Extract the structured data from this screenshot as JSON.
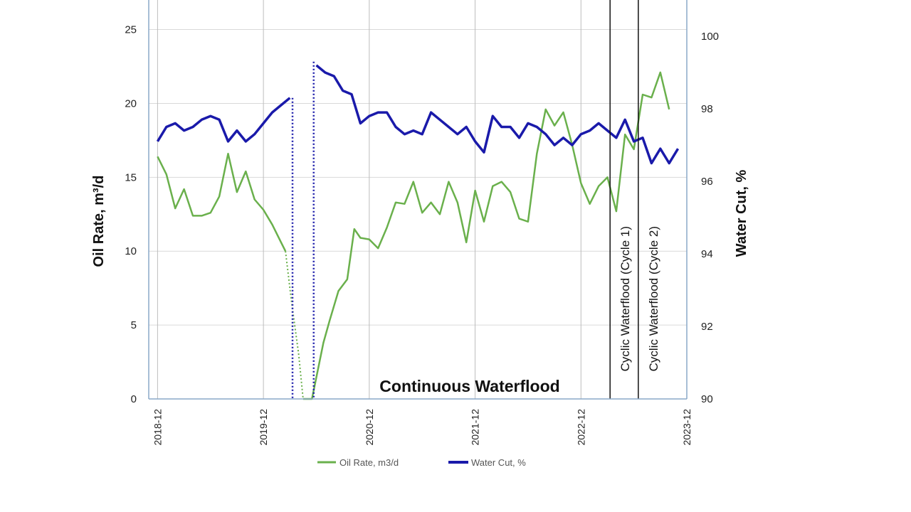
{
  "chart_data": {
    "type": "line",
    "y_left_label": "Oil Rate, m³/d",
    "y_right_label": "Water Cut, %",
    "ylim_left": [
      0,
      27
    ],
    "ylim_right": [
      90,
      101
    ],
    "yticks_left": [
      "0",
      "5",
      "10",
      "15",
      "20",
      "25"
    ],
    "yticks_right": [
      "90",
      "92",
      "94",
      "96",
      "98",
      "100"
    ],
    "x_tick_labels": [
      "2018-12",
      "2019-12",
      "2020-12",
      "2021-12",
      "2022-12",
      "2023-12"
    ],
    "x_tick_months": [
      0,
      12,
      24,
      36,
      48,
      60
    ],
    "xlim_months": [
      -1,
      60
    ],
    "grid": true,
    "series": [
      {
        "name": "Oil Rate, m3/d",
        "axis": "left",
        "color": "#6ab04c",
        "segments": [
          [
            [
              0,
              16.4
            ],
            [
              1,
              15.2
            ],
            [
              2,
              12.9
            ],
            [
              3,
              14.2
            ],
            [
              4,
              12.4
            ],
            [
              5,
              12.4
            ],
            [
              6,
              12.6
            ],
            [
              7,
              13.7
            ],
            [
              8,
              16.6
            ],
            [
              9,
              14
            ],
            [
              10,
              15.4
            ],
            [
              11,
              13.5
            ],
            [
              12,
              12.8
            ],
            [
              13,
              11.8
            ],
            [
              14,
              10.6
            ],
            [
              14.5,
              10
            ]
          ],
          [
            [
              16.5,
              0
            ],
            [
              17.5,
              0
            ],
            [
              18.8,
              3.8
            ],
            [
              19.5,
              5.3
            ],
            [
              20.5,
              7.3
            ],
            [
              21.5,
              8.1
            ],
            [
              22.3,
              11.5
            ],
            [
              23,
              10.9
            ],
            [
              24,
              10.8
            ],
            [
              25,
              10.2
            ],
            [
              26,
              11.6
            ],
            [
              27,
              13.3
            ],
            [
              28,
              13.2
            ],
            [
              29,
              14.7
            ],
            [
              30,
              12.6
            ],
            [
              31,
              13.3
            ],
            [
              32,
              12.5
            ],
            [
              33,
              14.7
            ],
            [
              34,
              13.3
            ],
            [
              35,
              10.6
            ],
            [
              36,
              14.1
            ],
            [
              37,
              12
            ],
            [
              38,
              14.4
            ],
            [
              39,
              14.7
            ],
            [
              40,
              14
            ],
            [
              41,
              12.2
            ],
            [
              42,
              12
            ],
            [
              43,
              16.6
            ],
            [
              44,
              19.6
            ],
            [
              45,
              18.5
            ],
            [
              46,
              19.4
            ],
            [
              47,
              17.2
            ],
            [
              48,
              14.6
            ],
            [
              49,
              13.2
            ],
            [
              50,
              14.4
            ],
            [
              51,
              15
            ],
            [
              52,
              12.7
            ],
            [
              53,
              17.9
            ],
            [
              54,
              16.9
            ],
            [
              55,
              20.6
            ],
            [
              56,
              20.4
            ],
            [
              57,
              22.1
            ],
            [
              58,
              19.6
            ]
          ]
        ],
        "dotted_gap": [
          [
            14.5,
            10
          ],
          [
            15.2,
            6.5
          ],
          [
            16,
            3
          ],
          [
            16.5,
            0
          ]
        ]
      },
      {
        "name": "Water Cut, %",
        "axis": "right",
        "color": "#1a1aaa",
        "segments": [
          [
            [
              0,
              97.1
            ],
            [
              1,
              97.5
            ],
            [
              2,
              97.6
            ],
            [
              3,
              97.4
            ],
            [
              4,
              97.5
            ],
            [
              5,
              97.7
            ],
            [
              6,
              97.8
            ],
            [
              7,
              97.7
            ],
            [
              8,
              97.1
            ],
            [
              9,
              97.4
            ],
            [
              10,
              97.1
            ],
            [
              11,
              97.3
            ],
            [
              12,
              97.6
            ],
            [
              13,
              97.9
            ],
            [
              14,
              98.1
            ],
            [
              15,
              98.3
            ]
          ],
          [
            [
              18,
              99.2
            ],
            [
              19,
              99
            ],
            [
              20,
              98.9
            ],
            [
              21,
              98.5
            ],
            [
              22,
              98.4
            ],
            [
              23,
              97.6
            ],
            [
              24,
              97.8
            ],
            [
              25,
              97.9
            ],
            [
              26,
              97.9
            ],
            [
              27,
              97.5
            ],
            [
              28,
              97.3
            ],
            [
              29,
              97.4
            ],
            [
              30,
              97.3
            ],
            [
              31,
              97.9
            ],
            [
              32,
              97.7
            ],
            [
              33,
              97.5
            ],
            [
              34,
              97.3
            ],
            [
              35,
              97.5
            ],
            [
              36,
              97.1
            ],
            [
              37,
              96.8
            ],
            [
              38,
              97.8
            ],
            [
              39,
              97.5
            ],
            [
              40,
              97.5
            ],
            [
              41,
              97.2
            ],
            [
              42,
              97.6
            ],
            [
              43,
              97.5
            ],
            [
              44,
              97.3
            ],
            [
              45,
              97
            ],
            [
              46,
              97.2
            ],
            [
              47,
              97
            ],
            [
              48,
              97.3
            ],
            [
              49,
              97.4
            ],
            [
              50,
              97.6
            ],
            [
              51,
              97.4
            ],
            [
              52,
              97.2
            ],
            [
              53,
              97.7
            ],
            [
              54,
              97.1
            ],
            [
              55,
              97.2
            ],
            [
              56,
              96.5
            ],
            [
              57,
              96.9
            ],
            [
              58,
              96.5
            ],
            [
              59,
              96.9
            ]
          ]
        ],
        "dotted_drops": [
          [
            15.3,
            98.3,
            90
          ],
          [
            17.7,
            99.3,
            90
          ]
        ]
      }
    ],
    "events": [
      {
        "month": 51.3,
        "label": "Cyclic Waterflood (Cycle 1)"
      },
      {
        "month": 54.5,
        "label": "Cyclic Waterflood (Cycle 2)"
      }
    ],
    "annotations": [
      {
        "text": "Continuous Waterflood"
      }
    ],
    "legend": [
      {
        "label": "Oil Rate, m3/d",
        "color": "#6ab04c"
      },
      {
        "label": "Water Cut, %",
        "color": "#1a1aaa"
      }
    ]
  }
}
